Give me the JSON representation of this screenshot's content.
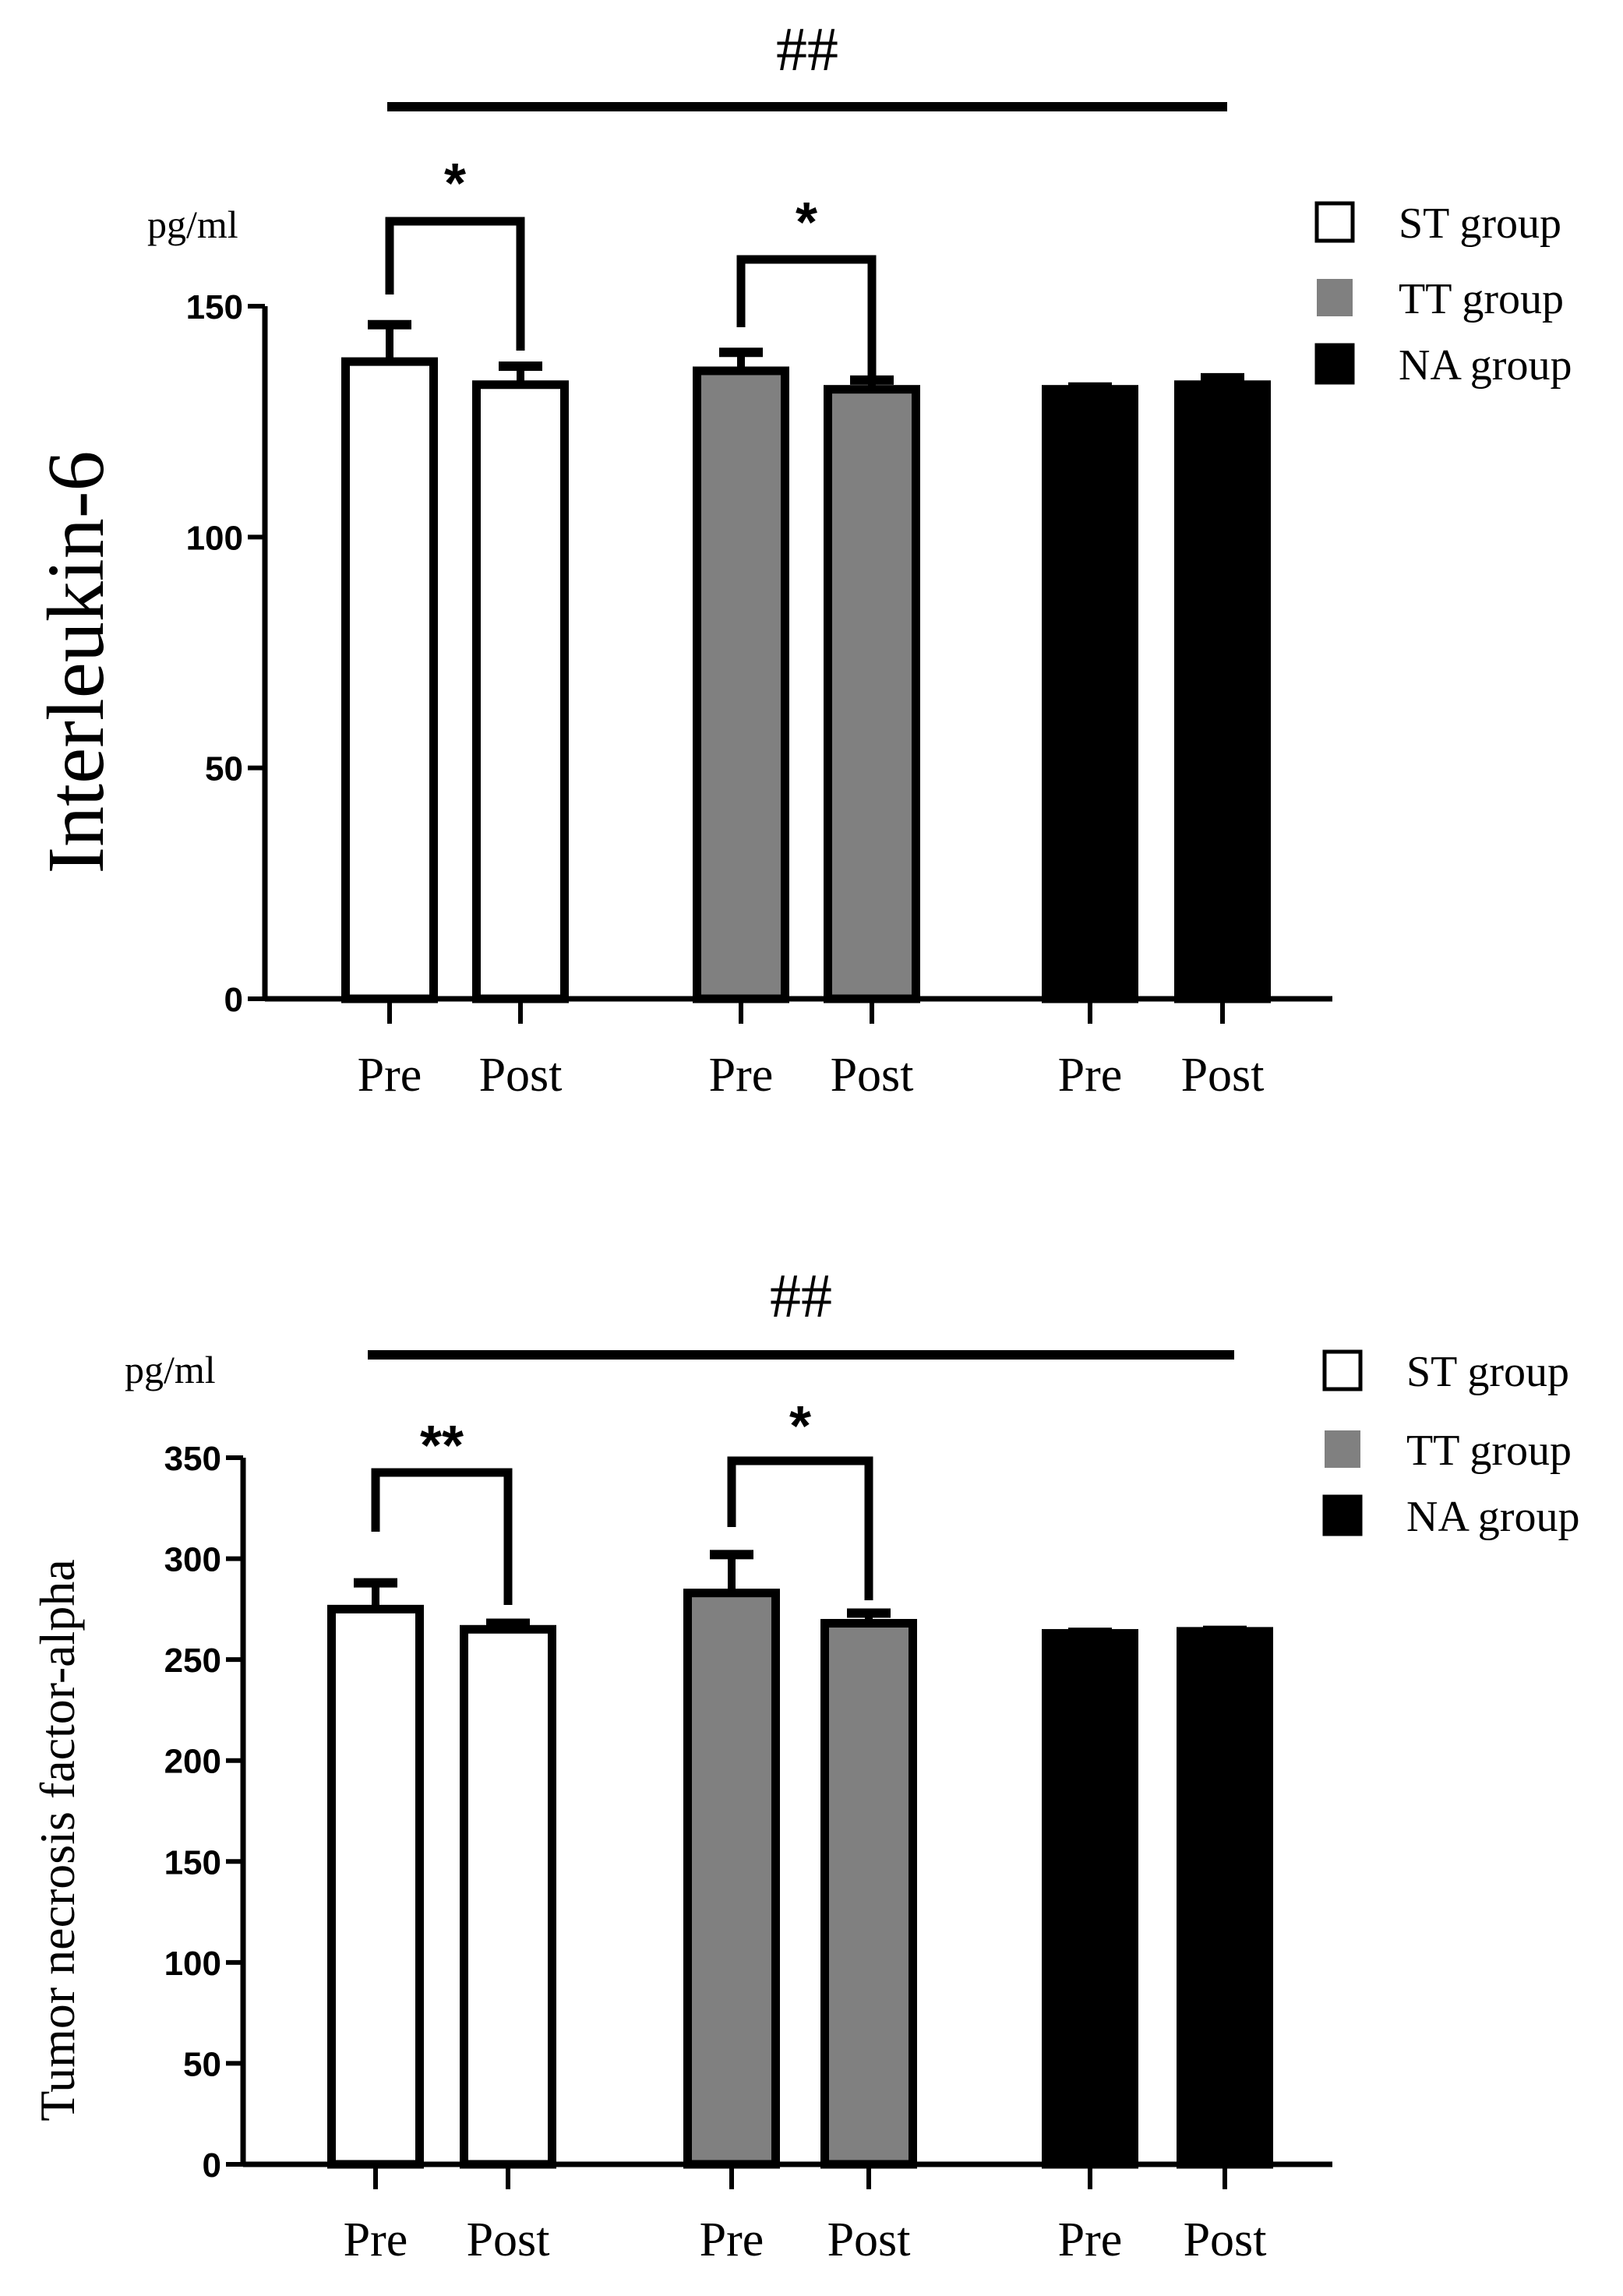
{
  "chart_data": [
    {
      "type": "bar",
      "title": "",
      "ylabel": "Interleukin-6",
      "unit_label": "pg/ml",
      "xlabel": "",
      "ylim": [
        0,
        150
      ],
      "yticks": [
        0,
        50,
        100,
        150
      ],
      "ytick_labels": [
        "0",
        "50",
        "100",
        "150"
      ],
      "categories": [
        "Pre",
        "Post",
        "Pre",
        "Post",
        "Pre",
        "Post"
      ],
      "groups": [
        "ST group",
        "ST group",
        "TT group",
        "TT group",
        "NA group",
        "NA group"
      ],
      "values": [
        138,
        133,
        136,
        132,
        132,
        133
      ],
      "errors": [
        8,
        4,
        4,
        2,
        0.5,
        1.5
      ],
      "legend": [
        {
          "label": "ST group",
          "color": "#ffffff"
        },
        {
          "label": "TT group",
          "color": "#808080"
        },
        {
          "label": "NA group",
          "color": "#000000"
        }
      ],
      "legend_position": "top-right",
      "annotations": [
        {
          "text": "##",
          "type": "overall",
          "from": 0,
          "to": 5
        },
        {
          "text": "*",
          "type": "bracket",
          "from": 0,
          "to": 1
        },
        {
          "text": "*",
          "type": "bracket",
          "from": 2,
          "to": 3
        }
      ],
      "grid": false
    },
    {
      "type": "bar",
      "title": "",
      "ylabel": "Tumor necrosis factor-alpha",
      "unit_label": "pg/ml",
      "xlabel": "",
      "ylim": [
        0,
        350
      ],
      "yticks": [
        0,
        50,
        100,
        150,
        200,
        250,
        300,
        350
      ],
      "ytick_labels": [
        "0",
        "50",
        "100",
        "150",
        "200",
        "250",
        "300",
        "350"
      ],
      "categories": [
        "Pre",
        "Post",
        "Pre",
        "Post",
        "Pre",
        "Post"
      ],
      "groups": [
        "ST group",
        "ST group",
        "TT group",
        "TT group",
        "NA group",
        "NA group"
      ],
      "values": [
        275,
        265,
        283,
        268,
        263,
        264
      ],
      "errors": [
        13,
        3,
        19,
        5,
        0.5,
        0.5
      ],
      "legend": [
        {
          "label": "ST group",
          "color": "#ffffff"
        },
        {
          "label": "TT group",
          "color": "#808080"
        },
        {
          "label": "NA group",
          "color": "#000000"
        }
      ],
      "legend_position": "top-right",
      "annotations": [
        {
          "text": "##",
          "type": "overall",
          "from": 0,
          "to": 5
        },
        {
          "text": "**",
          "type": "bracket",
          "from": 0,
          "to": 1
        },
        {
          "text": "*",
          "type": "bracket",
          "from": 2,
          "to": 3
        }
      ],
      "grid": false
    }
  ]
}
